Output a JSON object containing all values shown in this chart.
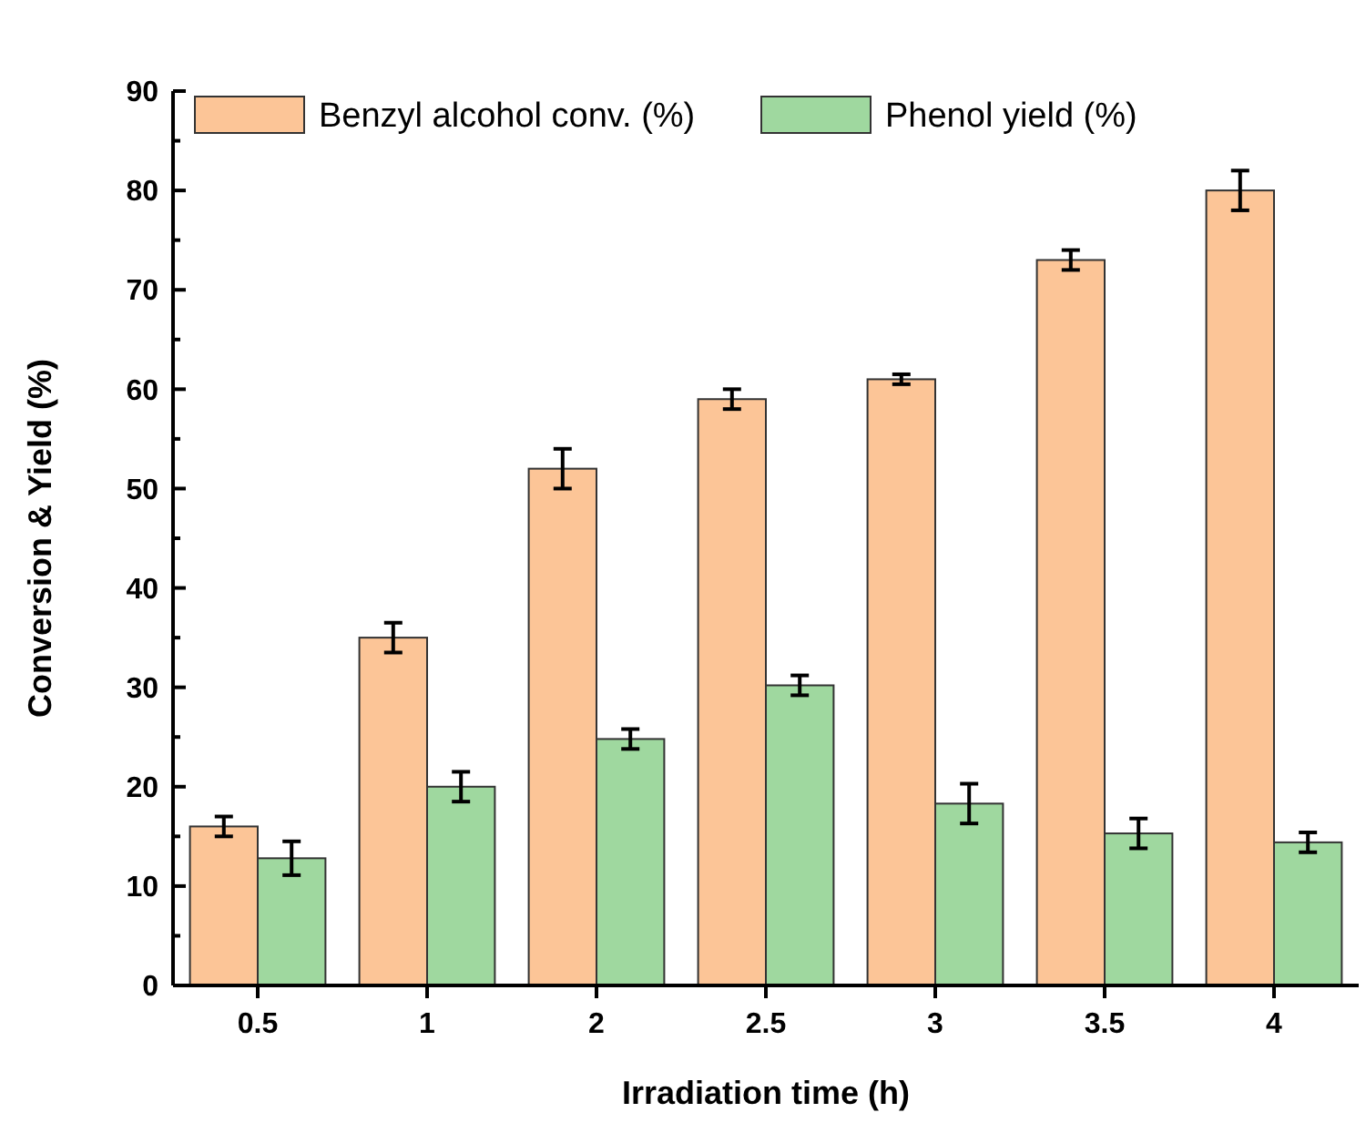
{
  "chart_data": {
    "type": "bar",
    "xlabel": "Irradiation time (h)",
    "ylabel": "Conversion & Yield (%)",
    "categories": [
      "0.5",
      "1",
      "2",
      "2.5",
      "3",
      "3.5",
      "4"
    ],
    "series": [
      {
        "name": "Benzyl alcohol conv. (%)",
        "color": "#fcc597",
        "values": [
          16,
          35,
          52,
          59,
          61,
          73,
          80
        ],
        "errors": [
          1,
          1.5,
          2,
          1,
          0.5,
          1,
          2
        ]
      },
      {
        "name": "Phenol yield (%)",
        "color": "#9fd89f",
        "values": [
          12.8,
          20,
          24.8,
          30.2,
          18.3,
          15.3,
          14.4
        ],
        "errors": [
          1.7,
          1.5,
          1,
          1,
          2,
          1.5,
          1
        ]
      }
    ],
    "ylim": [
      0,
      90
    ],
    "yticks": [
      0,
      10,
      20,
      30,
      40,
      50,
      60,
      70,
      80,
      90
    ],
    "grid": false,
    "legend": "top"
  }
}
